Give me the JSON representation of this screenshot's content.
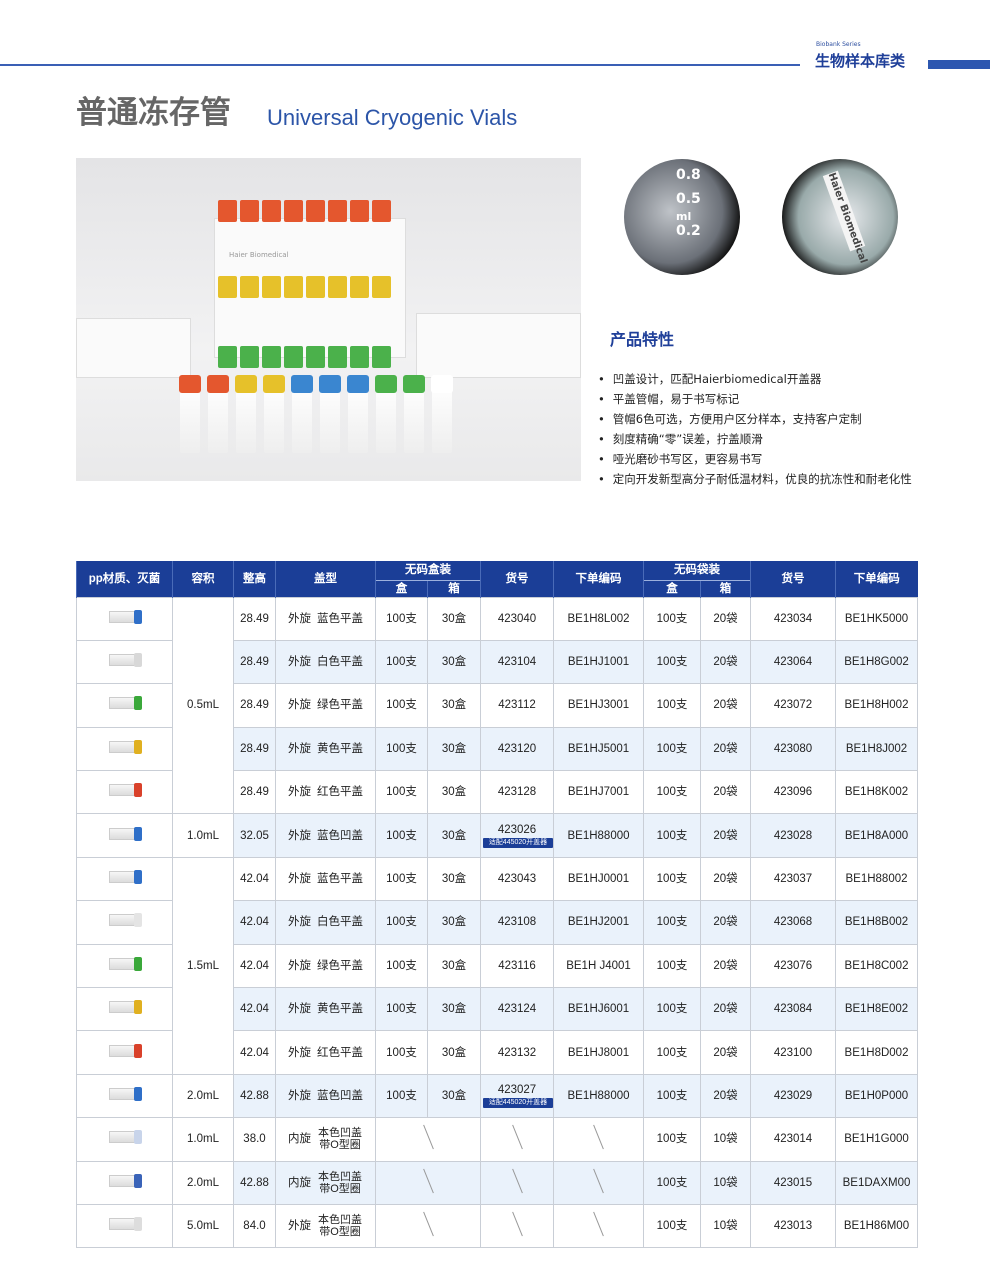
{
  "header": {
    "series_en": "Biobank Series",
    "series_cn": "生物样本库类"
  },
  "title": {
    "cn": "普通冻存管",
    "en": "Universal Cryogenic Vials"
  },
  "photo": {
    "rack_label": "Haier Biomedical",
    "scale_marks": [
      "0.8",
      "0.5",
      "ml",
      "0.2"
    ],
    "vial_label": "Haier Biomedical"
  },
  "colors": {
    "brand_blue": "#1b3e97",
    "row_shade": "#eaf2fb"
  },
  "features": {
    "title": "产品特性",
    "items": [
      "凹盖设计，匹配Haierbiomedical开盖器",
      "平盖管帽，易于书写标记",
      "管帽6色可选，方便用户区分样本，支持客户定制",
      "刻度精确“零”误差，拧盖顺滑",
      "哑光磨砂书写区，更容易书写",
      "定向开发新型高分子耐低温材料，优良的抗冻性和耐老化性"
    ]
  },
  "table": {
    "headers": {
      "material": "pp材质、灭菌",
      "volume": "容积",
      "height": "整高",
      "cap": "盖型",
      "box_group": "无码盒装",
      "box": "盒",
      "case": "箱",
      "item_no": "货号",
      "order_code": "下单编码",
      "bag_group": "无码袋装",
      "bag_box": "盒",
      "bag_case": "箱",
      "bag_item_no": "货号",
      "bag_order_code": "下单编码"
    },
    "rows": [
      {
        "cap_color": "#2f6fc8",
        "volume": "0.5mL",
        "height": "28.49",
        "thread": "外旋",
        "cap": "蓝色平盖",
        "box": "100支",
        "case": "30盒",
        "item_no": "423040",
        "order_code": "BE1H8L002",
        "bag_box": "100支",
        "bag_case": "20袋",
        "bag_item_no": "423034",
        "bag_order_code": "BE1HK5000"
      },
      {
        "cap_color": "#d8d8d8",
        "height": "28.49",
        "thread": "外旋",
        "cap": "白色平盖",
        "box": "100支",
        "case": "30盒",
        "item_no": "423104",
        "order_code": "BE1HJ1001",
        "bag_box": "100支",
        "bag_case": "20袋",
        "bag_item_no": "423064",
        "bag_order_code": "BE1H8G002"
      },
      {
        "cap_color": "#3aa83a",
        "height": "28.49",
        "thread": "外旋",
        "cap": "绿色平盖",
        "box": "100支",
        "case": "30盒",
        "item_no": "423112",
        "order_code": "BE1HJ3001",
        "bag_box": "100支",
        "bag_case": "20袋",
        "bag_item_no": "423072",
        "bag_order_code": "BE1H8H002"
      },
      {
        "cap_color": "#e0b020",
        "height": "28.49",
        "thread": "外旋",
        "cap": "黄色平盖",
        "box": "100支",
        "case": "30盒",
        "item_no": "423120",
        "order_code": "BE1HJ5001",
        "bag_box": "100支",
        "bag_case": "20袋",
        "bag_item_no": "423080",
        "bag_order_code": "BE1H8J002"
      },
      {
        "cap_color": "#d9412a",
        "height": "28.49",
        "thread": "外旋",
        "cap": "红色平盖",
        "box": "100支",
        "case": "30盒",
        "item_no": "423128",
        "order_code": "BE1HJ7001",
        "bag_box": "100支",
        "bag_case": "20袋",
        "bag_item_no": "423096",
        "bag_order_code": "BE1H8K002"
      },
      {
        "cap_color": "#2f6fc8",
        "volume": "1.0mL",
        "height": "32.05",
        "thread": "外旋",
        "cap": "蓝色凹盖",
        "box": "100支",
        "case": "30盒",
        "item_no": "423026",
        "note": "适配445020开盖器",
        "order_code": "BE1H88000",
        "bag_box": "100支",
        "bag_case": "20袋",
        "bag_item_no": "423028",
        "bag_order_code": "BE1H8A000"
      },
      {
        "cap_color": "#2f6fc8",
        "volume": "1.5mL",
        "height": "42.04",
        "thread": "外旋",
        "cap": "蓝色平盖",
        "box": "100支",
        "case": "30盒",
        "item_no": "423043",
        "order_code": "BE1HJ0001",
        "bag_box": "100支",
        "bag_case": "20袋",
        "bag_item_no": "423037",
        "bag_order_code": "BE1H88002"
      },
      {
        "cap_color": "#e4e4e4",
        "height": "42.04",
        "thread": "外旋",
        "cap": "白色平盖",
        "box": "100支",
        "case": "30盒",
        "item_no": "423108",
        "order_code": "BE1HJ2001",
        "bag_box": "100支",
        "bag_case": "20袋",
        "bag_item_no": "423068",
        "bag_order_code": "BE1H8B002"
      },
      {
        "cap_color": "#3aa83a",
        "height": "42.04",
        "thread": "外旋",
        "cap": "绿色平盖",
        "box": "100支",
        "case": "30盒",
        "item_no": "423116",
        "order_code": "BE1H J4001",
        "bag_box": "100支",
        "bag_case": "20袋",
        "bag_item_no": "423076",
        "bag_order_code": "BE1H8C002"
      },
      {
        "cap_color": "#e0b020",
        "height": "42.04",
        "thread": "外旋",
        "cap": "黄色平盖",
        "box": "100支",
        "case": "30盒",
        "item_no": "423124",
        "order_code": "BE1HJ6001",
        "bag_box": "100支",
        "bag_case": "20袋",
        "bag_item_no": "423084",
        "bag_order_code": "BE1H8E002"
      },
      {
        "cap_color": "#d9412a",
        "height": "42.04",
        "thread": "外旋",
        "cap": "红色平盖",
        "box": "100支",
        "case": "30盒",
        "item_no": "423132",
        "order_code": "BE1HJ8001",
        "bag_box": "100支",
        "bag_case": "20袋",
        "bag_item_no": "423100",
        "bag_order_code": "BE1H8D002"
      },
      {
        "cap_color": "#2f6fc8",
        "volume": "2.0mL",
        "height": "42.88",
        "thread": "外旋",
        "cap": "蓝色凹盖",
        "box": "100支",
        "case": "30盒",
        "item_no": "423027",
        "note": "适配445020开盖器",
        "order_code": "BE1H88000",
        "bag_box": "100支",
        "bag_case": "20袋",
        "bag_item_no": "423029",
        "bag_order_code": "BE1H0P000"
      },
      {
        "cap_color": "#c8d4ea",
        "volume": "1.0mL",
        "height": "38.0",
        "thread": "内旋",
        "cap": "本色凹盖 带O型圈",
        "bag_box": "100支",
        "bag_case": "10袋",
        "bag_item_no": "423014",
        "bag_order_code": "BE1H1G000"
      },
      {
        "cap_color": "#3a63b8",
        "volume": "2.0mL",
        "height": "42.88",
        "thread": "内旋",
        "cap": "本色凹盖 带O型圈",
        "bag_box": "100支",
        "bag_case": "10袋",
        "bag_item_no": "423015",
        "bag_order_code": "BE1DAXM00"
      },
      {
        "cap_color": "#dddddd",
        "volume": "5.0mL",
        "height": "84.0",
        "thread": "外旋",
        "cap": "本色凹盖 带O型圈",
        "bag_box": "100支",
        "bag_case": "10袋",
        "bag_item_no": "423013",
        "bag_order_code": "BE1H86M00"
      }
    ]
  }
}
